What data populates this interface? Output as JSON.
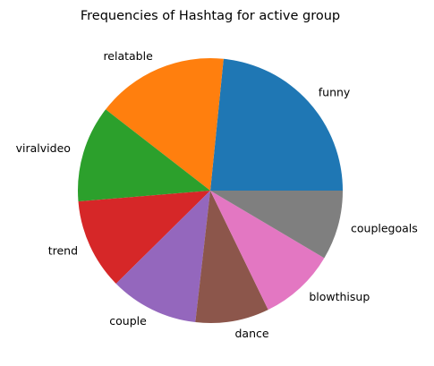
{
  "chart_data": {
    "type": "pie",
    "title": "Frequencies of Hashtag for active group",
    "start_angle_deg": 0,
    "direction": "counterclockwise",
    "slices": [
      {
        "label": "funny",
        "value": 23.4,
        "color": "#1f77b4"
      },
      {
        "label": "relatable",
        "value": 16.1,
        "color": "#ff7f0e"
      },
      {
        "label": "viralvideo",
        "value": 11.8,
        "color": "#2ca02c"
      },
      {
        "label": "trend",
        "value": 11.1,
        "color": "#d62728"
      },
      {
        "label": "couple",
        "value": 10.8,
        "color": "#9467bd"
      },
      {
        "label": "dance",
        "value": 9.0,
        "color": "#8c564b"
      },
      {
        "label": "blowthisup",
        "value": 9.3,
        "color": "#e377c2"
      },
      {
        "label": "couplegoals",
        "value": 8.5,
        "color": "#7f7f7f"
      }
    ]
  }
}
